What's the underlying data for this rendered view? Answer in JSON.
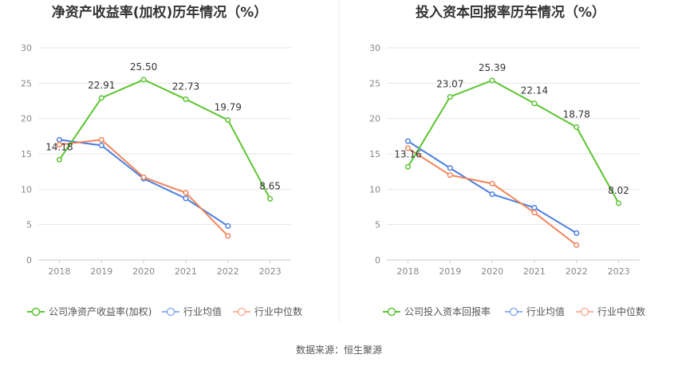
{
  "footer": {
    "source": "数据来源：恒生聚源"
  },
  "chart_data": [
    {
      "type": "line",
      "title": "净资产收益率(加权)历年情况（%）",
      "categories": [
        "2018",
        "2019",
        "2020",
        "2021",
        "2022",
        "2023"
      ],
      "yticks": [
        "0",
        "5",
        "10",
        "15",
        "20",
        "25",
        "30"
      ],
      "ylim": [
        0,
        30
      ],
      "series": [
        {
          "name": "公司净资产收益率(加权)",
          "color": "#5cc531",
          "values": [
            14.18,
            22.91,
            25.5,
            22.73,
            19.79,
            8.65
          ],
          "labels": [
            "14.18",
            "22.91",
            "25.50",
            "22.73",
            "19.79",
            "8.65"
          ]
        },
        {
          "name": "行业均值",
          "color": "#4a7ee0",
          "values": [
            17.0,
            16.2,
            11.5,
            8.7,
            4.8,
            null
          ]
        },
        {
          "name": "行业中位数",
          "color": "#f2845a",
          "values": [
            16.3,
            17.0,
            11.7,
            9.5,
            3.4,
            null
          ]
        }
      ]
    },
    {
      "type": "line",
      "title": "投入资本回报率历年情况（%）",
      "categories": [
        "2018",
        "2019",
        "2020",
        "2021",
        "2022",
        "2023"
      ],
      "yticks": [
        "0",
        "5",
        "10",
        "15",
        "20",
        "25",
        "30"
      ],
      "ylim": [
        0,
        30
      ],
      "series": [
        {
          "name": "公司投入资本回报率",
          "color": "#5cc531",
          "values": [
            13.16,
            23.07,
            25.39,
            22.14,
            18.78,
            8.02
          ],
          "labels": [
            "13.16",
            "23.07",
            "25.39",
            "22.14",
            "18.78",
            "8.02"
          ]
        },
        {
          "name": "行业均值",
          "color": "#4a7ee0",
          "values": [
            16.8,
            13.0,
            9.3,
            7.4,
            3.8,
            null
          ]
        },
        {
          "name": "行业中位数",
          "color": "#f2845a",
          "values": [
            15.8,
            12.0,
            10.8,
            6.7,
            2.1,
            null
          ]
        }
      ]
    }
  ]
}
